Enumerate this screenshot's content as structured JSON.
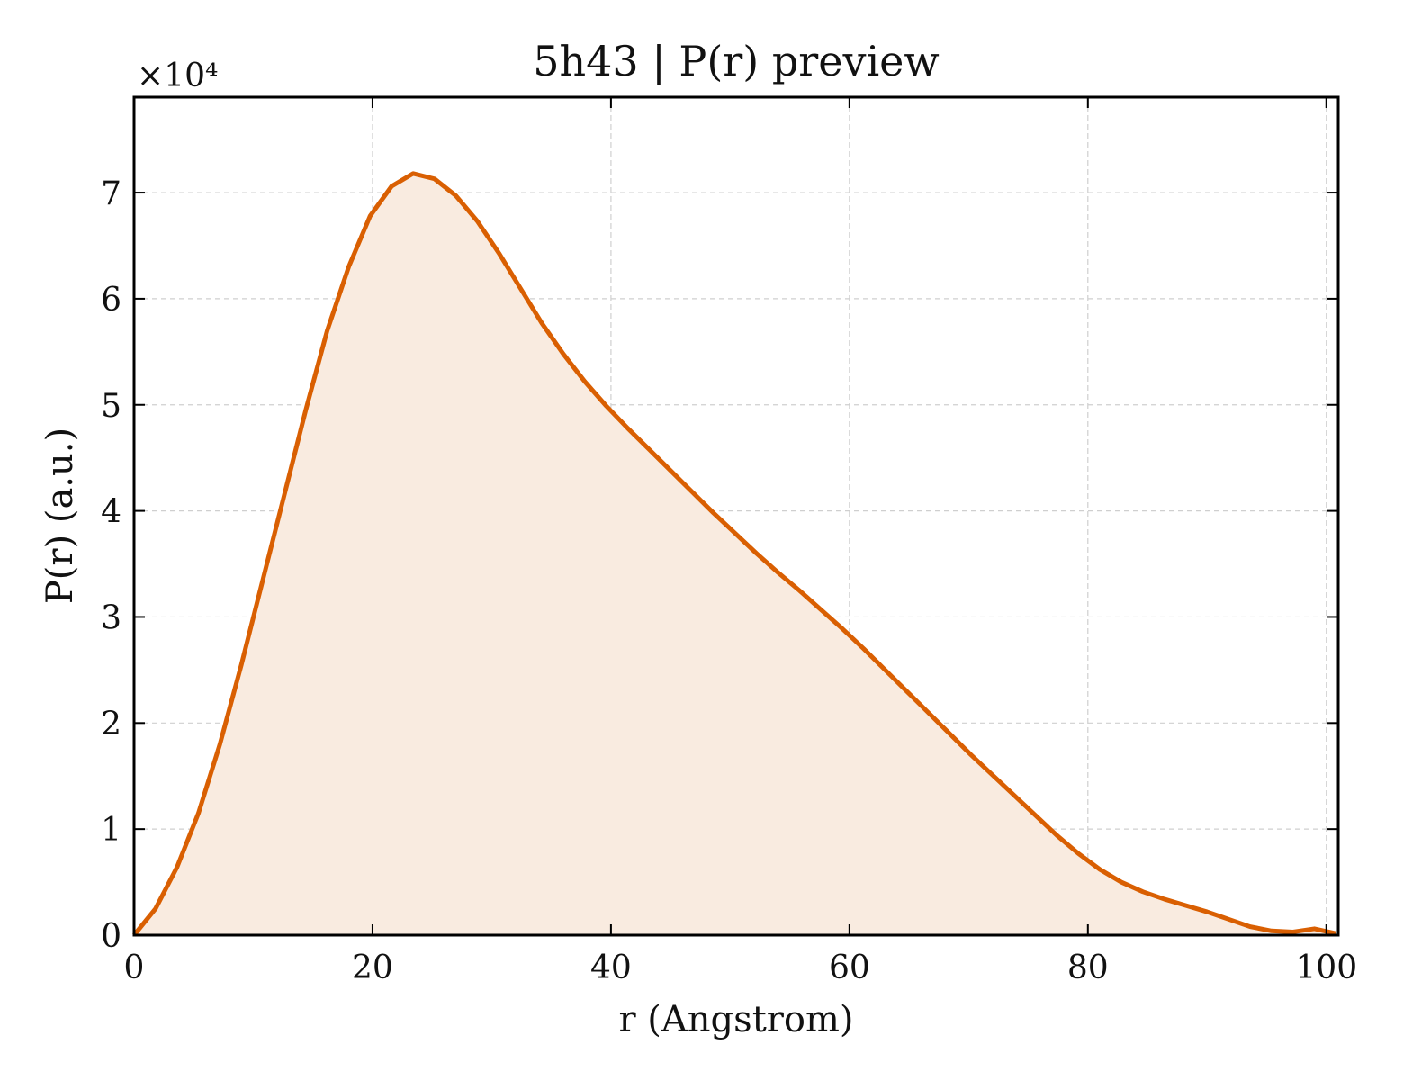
{
  "chart_data": {
    "type": "area",
    "title": "5h43 | P(r) preview",
    "xlabel": "r (Angstrom)",
    "ylabel": "P(r) (a.u.)",
    "y_offset_label": "×10⁴",
    "y_scale": 10000,
    "xlim": [
      0,
      101
    ],
    "ylim": [
      0,
      79000
    ],
    "x_ticks": [
      0,
      20,
      40,
      60,
      80,
      100
    ],
    "y_ticks": [
      0,
      10000,
      20000,
      30000,
      40000,
      50000,
      60000,
      70000
    ],
    "y_tick_labels": [
      "0",
      "1",
      "2",
      "3",
      "4",
      "5",
      "6",
      "7"
    ],
    "grid": true,
    "line_color": "#d95f02",
    "fill_color": "#f9ebe0",
    "x": [
      0,
      1.8,
      3.6,
      5.4,
      7.2,
      9.0,
      10.8,
      12.6,
      14.4,
      16.2,
      18.0,
      19.8,
      21.6,
      23.4,
      25.2,
      27.0,
      28.8,
      30.6,
      32.4,
      34.2,
      36.0,
      37.8,
      39.6,
      41.4,
      43.2,
      45.0,
      46.8,
      48.6,
      50.4,
      52.2,
      54.0,
      55.8,
      57.6,
      59.4,
      61.2,
      63.0,
      64.8,
      66.6,
      68.4,
      70.2,
      72.0,
      73.8,
      75.6,
      77.4,
      79.2,
      81.0,
      82.8,
      84.6,
      86.4,
      88.2,
      90.0,
      91.8,
      93.6,
      95.4,
      97.2,
      99.0,
      100.8
    ],
    "y": [
      0,
      2500,
      6400,
      11500,
      18000,
      25500,
      33500,
      41500,
      49500,
      57000,
      63000,
      67800,
      70600,
      71800,
      71300,
      69700,
      67300,
      64300,
      61000,
      57700,
      54800,
      52200,
      49900,
      47800,
      45800,
      43800,
      41800,
      39800,
      37900,
      36000,
      34200,
      32500,
      30700,
      28900,
      27000,
      25000,
      23000,
      21000,
      19000,
      17000,
      15100,
      13200,
      11300,
      9400,
      7700,
      6200,
      5000,
      4100,
      3400,
      2800,
      2200,
      1500,
      800,
      400,
      300,
      600,
      150
    ]
  }
}
